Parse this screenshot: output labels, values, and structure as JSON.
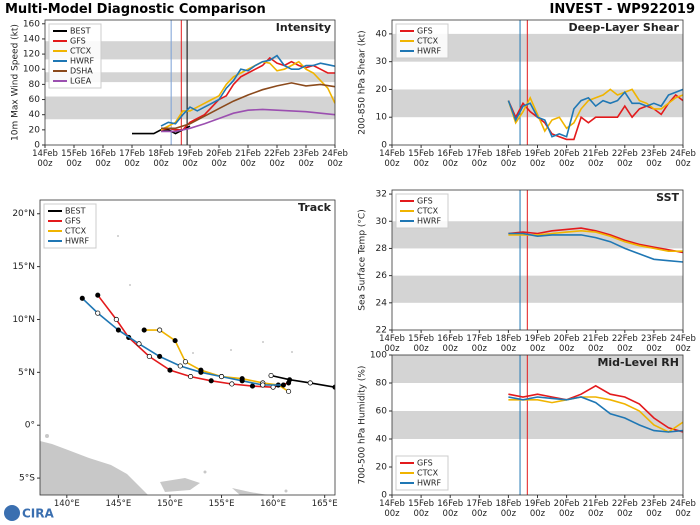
{
  "header": {
    "title": "Multi-Model Diagnostic Comparison",
    "subtitle": "INVEST - WP922019",
    "logo": "CIRA"
  },
  "chart_data": [
    {
      "type": "line",
      "title": "Intensity",
      "y_label": "10m Max Wind Speed (kt)",
      "legend": "upper left",
      "xlim": [
        0,
        10
      ],
      "ylim": [
        0,
        165
      ],
      "xticks": [
        {
          "value": 0,
          "label": "14Feb 00z"
        },
        {
          "value": 1,
          "label": "15Feb 00z"
        },
        {
          "value": 2,
          "label": "16Feb 00z"
        },
        {
          "value": 3,
          "label": "17Feb 00z"
        },
        {
          "value": 4,
          "label": "18Feb 00z"
        },
        {
          "value": 5,
          "label": "19Feb 00z"
        },
        {
          "value": 6,
          "label": "20Feb 00z"
        },
        {
          "value": 7,
          "label": "21Feb 00z"
        },
        {
          "value": 8,
          "label": "22Feb 00z"
        },
        {
          "value": 9,
          "label": "23Feb 00z"
        },
        {
          "value": 10,
          "label": "24Feb 00z"
        }
      ],
      "yticks": [
        0,
        20,
        40,
        60,
        80,
        100,
        120,
        140,
        160
      ],
      "bands": [
        [
          34,
          64
        ],
        [
          83,
          96
        ],
        [
          113,
          137
        ]
      ],
      "vlines": [
        {
          "x": 4.35,
          "color": "#7a9fd6"
        },
        {
          "x": 4.7,
          "color": "#e31a1c"
        },
        {
          "x": 4.9,
          "color": "#000000"
        }
      ],
      "series": [
        {
          "name": "BEST",
          "color": "#000000",
          "x": [
            3,
            3.25,
            3.5,
            3.75,
            4,
            4.25,
            4.5,
            4.75,
            5
          ],
          "values": [
            15,
            15,
            15,
            15,
            20,
            20,
            15,
            20,
            25
          ]
        },
        {
          "name": "GFS",
          "color": "#e31a1c",
          "x": [
            4,
            4.25,
            4.5,
            4.75,
            5,
            5.25,
            5.5,
            5.75,
            6,
            6.25,
            6.5,
            6.75,
            7,
            7.25,
            7.5,
            7.75,
            8,
            8.25,
            8.5,
            8.75,
            9,
            9.25,
            9.5,
            9.75,
            10
          ],
          "values": [
            20,
            22,
            20,
            20,
            30,
            35,
            40,
            50,
            60,
            65,
            80,
            90,
            95,
            100,
            105,
            115,
            108,
            105,
            110,
            105,
            102,
            105,
            100,
            95,
            95
          ]
        },
        {
          "name": "CTCX",
          "color": "#f0b400",
          "x": [
            4,
            4.25,
            4.5,
            4.75,
            5,
            5.25,
            5.5,
            5.75,
            6,
            6.25,
            6.5,
            6.75,
            7,
            7.25,
            7.5,
            7.75,
            8,
            8.25,
            8.5,
            8.75,
            9,
            9.25,
            9.5,
            9.75,
            10
          ],
          "values": [
            20,
            25,
            30,
            45,
            45,
            50,
            55,
            60,
            65,
            80,
            90,
            95,
            100,
            105,
            110,
            108,
            98,
            100,
            105,
            110,
            100,
            95,
            85,
            75,
            55
          ]
        },
        {
          "name": "HWRF",
          "color": "#1f77b4",
          "x": [
            4,
            4.25,
            4.5,
            4.75,
            5,
            5.25,
            5.5,
            5.75,
            6,
            6.25,
            6.5,
            6.75,
            7,
            7.25,
            7.5,
            7.75,
            8,
            8.25,
            8.5,
            8.75,
            9,
            9.25,
            9.5,
            9.75,
            10
          ],
          "values": [
            25,
            30,
            28,
            40,
            50,
            45,
            50,
            55,
            60,
            75,
            85,
            100,
            98,
            105,
            110,
            112,
            118,
            105,
            100,
            100,
            105,
            105,
            108,
            106,
            104
          ]
        },
        {
          "name": "DSHA",
          "color": "#8b4a1c",
          "x": [
            4,
            4.5,
            5,
            5.5,
            6,
            6.5,
            7,
            7.5,
            8,
            8.5,
            9,
            9.5,
            10
          ],
          "values": [
            22,
            22,
            28,
            38,
            48,
            58,
            66,
            73,
            78,
            82,
            78,
            80,
            77
          ]
        },
        {
          "name": "LGEA",
          "color": "#9b4fb0",
          "x": [
            4,
            4.5,
            5,
            5.5,
            6,
            6.5,
            7,
            7.5,
            8,
            8.5,
            9,
            9.5,
            10
          ],
          "values": [
            18,
            18,
            22,
            28,
            35,
            42,
            46,
            47,
            46,
            45,
            44,
            42,
            40
          ]
        }
      ]
    },
    {
      "type": "line",
      "title": "Deep-Layer Shear",
      "y_label": "200-850 hPa Shear (kt)",
      "legend": "upper left",
      "xlim": [
        0,
        10
      ],
      "ylim": [
        0,
        45
      ],
      "xticks": [
        {
          "value": 0,
          "label": "14Feb 00z"
        },
        {
          "value": 1,
          "label": "15Feb 00z"
        },
        {
          "value": 2,
          "label": "16Feb 00z"
        },
        {
          "value": 3,
          "label": "17Feb 00z"
        },
        {
          "value": 4,
          "label": "18Feb 00z"
        },
        {
          "value": 5,
          "label": "19Feb 00z"
        },
        {
          "value": 6,
          "label": "20Feb 00z"
        },
        {
          "value": 7,
          "label": "21Feb 00z"
        },
        {
          "value": 8,
          "label": "22Feb 00z"
        },
        {
          "value": 9,
          "label": "23Feb 00z"
        },
        {
          "value": 10,
          "label": "24Feb 00z"
        }
      ],
      "yticks": [
        0,
        10,
        20,
        30,
        40
      ],
      "bands": [
        [
          10,
          20
        ],
        [
          30,
          40
        ]
      ],
      "vlines": [
        {
          "x": 4.4,
          "color": "#1f77b4"
        },
        {
          "x": 4.65,
          "color": "#e31a1c"
        }
      ],
      "series": [
        {
          "name": "GFS",
          "color": "#e31a1c",
          "x": [
            4,
            4.25,
            4.5,
            4.75,
            5,
            5.25,
            5.5,
            5.75,
            6,
            6.25,
            6.5,
            6.75,
            7,
            7.25,
            7.5,
            7.75,
            8,
            8.25,
            8.5,
            8.75,
            9,
            9.25,
            9.5,
            9.75,
            10
          ],
          "values": [
            16,
            10,
            15,
            12,
            10,
            8,
            4,
            3,
            2,
            2,
            10,
            8,
            10,
            10,
            10,
            10,
            14,
            10,
            13,
            14,
            13,
            11,
            15,
            18,
            16
          ]
        },
        {
          "name": "CTCX",
          "color": "#f0b400",
          "x": [
            4,
            4.25,
            4.5,
            4.75,
            5,
            5.25,
            5.5,
            5.75,
            6,
            6.25,
            6.5,
            6.75,
            7,
            7.25,
            7.5,
            7.75,
            8,
            8.25,
            8.5,
            8.75,
            9,
            9.25,
            9.5,
            9.75,
            10
          ],
          "values": [
            16,
            8,
            12,
            17,
            11,
            5,
            9,
            10,
            6,
            8,
            13,
            16,
            17,
            18,
            20,
            18,
            19,
            20,
            16,
            15,
            13,
            13,
            15,
            17,
            18
          ]
        },
        {
          "name": "HWRF",
          "color": "#1f77b4",
          "x": [
            4,
            4.25,
            4.5,
            4.75,
            5,
            5.25,
            5.5,
            5.75,
            6,
            6.25,
            6.5,
            6.75,
            7,
            7.25,
            7.5,
            7.75,
            8,
            8.25,
            8.5,
            8.75,
            9,
            9.25,
            9.5,
            9.75,
            10
          ],
          "values": [
            16,
            9,
            14,
            15,
            10,
            9,
            3,
            4,
            3,
            13,
            16,
            17,
            14,
            16,
            15,
            16,
            19,
            15,
            15,
            14,
            15,
            14,
            18,
            19,
            20
          ]
        }
      ]
    },
    {
      "type": "line",
      "title": "Track",
      "legend": "upper left",
      "markers": true,
      "xlim": [
        137.4,
        166
      ],
      "ylim": [
        -6.6,
        21.3
      ],
      "xticks": [
        {
          "value": 140,
          "label": "140°E"
        },
        {
          "value": 145,
          "label": "145°E"
        },
        {
          "value": 150,
          "label": "150°E"
        },
        {
          "value": 155,
          "label": "155°E"
        },
        {
          "value": 160,
          "label": "160°E"
        },
        {
          "value": 165,
          "label": "165°E"
        }
      ],
      "yticks": [
        {
          "value": -5,
          "label": "5°S"
        },
        {
          "value": 0,
          "label": "0°"
        },
        {
          "value": 5,
          "label": "5°N"
        },
        {
          "value": 10,
          "label": "10°N"
        },
        {
          "value": 15,
          "label": "15°N"
        },
        {
          "value": 20,
          "label": "20°N"
        }
      ],
      "series": [
        {
          "name": "BEST",
          "color": "#000000",
          "x": [
            166,
            163.6,
            161.6,
            159.8
          ],
          "values": [
            3.6,
            4.0,
            4.3,
            4.7
          ]
        },
        {
          "name": "GFS",
          "color": "#e31a1c",
          "x": [
            143,
            144.8,
            146,
            148,
            150,
            152,
            154,
            156,
            158,
            160,
            161.5
          ],
          "values": [
            12.3,
            10,
            8.3,
            6.5,
            5.2,
            4.6,
            4.2,
            3.9,
            3.7,
            3.6,
            4.0
          ]
        },
        {
          "name": "CTCX",
          "color": "#f0b400",
          "x": [
            147.5,
            149,
            150.5,
            151.5,
            153,
            155,
            157,
            159,
            160.5,
            161.5
          ],
          "values": [
            9,
            9,
            8,
            6,
            5.2,
            4.6,
            4.4,
            4,
            3.8,
            3.2
          ]
        },
        {
          "name": "HWRF",
          "color": "#1f77b4",
          "x": [
            141.5,
            143,
            145,
            147,
            149,
            151,
            153,
            155,
            157,
            159,
            161
          ],
          "values": [
            12,
            10.6,
            9,
            7.7,
            6.5,
            5.6,
            5,
            4.6,
            4.2,
            3.8,
            3.8
          ]
        }
      ]
    },
    {
      "type": "line",
      "title": "SST",
      "y_label": "Sea Surface Temp (°C)",
      "legend": "upper left",
      "xlim": [
        0,
        10
      ],
      "ylim": [
        22,
        32.3
      ],
      "xticks": [
        {
          "value": 0,
          "label": "14Feb 00z"
        },
        {
          "value": 1,
          "label": "15Feb 00z"
        },
        {
          "value": 2,
          "label": "16Feb 00z"
        },
        {
          "value": 3,
          "label": "17Feb 00z"
        },
        {
          "value": 4,
          "label": "18Feb 00z"
        },
        {
          "value": 5,
          "label": "19Feb 00z"
        },
        {
          "value": 6,
          "label": "20Feb 00z"
        },
        {
          "value": 7,
          "label": "21Feb 00z"
        },
        {
          "value": 8,
          "label": "22Feb 00z"
        },
        {
          "value": 9,
          "label": "23Feb 00z"
        },
        {
          "value": 10,
          "label": "24Feb 00z"
        }
      ],
      "yticks": [
        22,
        24,
        26,
        28,
        30,
        32
      ],
      "bands": [
        [
          24,
          26
        ],
        [
          28,
          30
        ]
      ],
      "vlines": [
        {
          "x": 4.4,
          "color": "#1f77b4"
        },
        {
          "x": 4.65,
          "color": "#e31a1c"
        }
      ],
      "series": [
        {
          "name": "GFS",
          "color": "#e31a1c",
          "x": [
            4,
            4.5,
            5,
            5.5,
            6,
            6.5,
            7,
            7.5,
            8,
            8.5,
            9,
            9.5,
            10
          ],
          "values": [
            29.1,
            29.2,
            29.1,
            29.3,
            29.4,
            29.5,
            29.3,
            29.0,
            28.6,
            28.3,
            28.1,
            27.9,
            27.7
          ]
        },
        {
          "name": "CTCX",
          "color": "#f0b400",
          "x": [
            4,
            4.5,
            5,
            5.5,
            6,
            6.5,
            7,
            7.5,
            8,
            8.5,
            9,
            9.5,
            10
          ],
          "values": [
            29.0,
            29.0,
            29.0,
            29.1,
            29.2,
            29.3,
            29.2,
            28.9,
            28.5,
            28.2,
            28.0,
            27.8,
            27.8
          ]
        },
        {
          "name": "HWRF",
          "color": "#1f77b4",
          "x": [
            4,
            4.5,
            5,
            5.5,
            6,
            6.5,
            7,
            7.5,
            8,
            8.5,
            9,
            9.5,
            10
          ],
          "values": [
            29.1,
            29.1,
            28.9,
            29.0,
            29.0,
            29.0,
            28.8,
            28.5,
            28.0,
            27.6,
            27.2,
            27.1,
            27.0
          ]
        }
      ]
    },
    {
      "type": "line",
      "title": "Mid-Level RH",
      "y_label": "700-500 hPa Humidity (%)",
      "legend": "lower left",
      "xlim": [
        0,
        10
      ],
      "ylim": [
        0,
        100
      ],
      "xticks": [
        {
          "value": 0,
          "label": "14Feb 00z"
        },
        {
          "value": 1,
          "label": "15Feb 00z"
        },
        {
          "value": 2,
          "label": "16Feb 00z"
        },
        {
          "value": 3,
          "label": "17Feb 00z"
        },
        {
          "value": 4,
          "label": "18Feb 00z"
        },
        {
          "value": 5,
          "label": "19Feb 00z"
        },
        {
          "value": 6,
          "label": "20Feb 00z"
        },
        {
          "value": 7,
          "label": "21Feb 00z"
        },
        {
          "value": 8,
          "label": "22Feb 00z"
        },
        {
          "value": 9,
          "label": "23Feb 00z"
        },
        {
          "value": 10,
          "label": "24Feb 00z"
        }
      ],
      "yticks": [
        0,
        20,
        40,
        60,
        80,
        100
      ],
      "bands": [
        [
          40,
          60
        ],
        [
          80,
          100
        ]
      ],
      "vlines": [
        {
          "x": 4.4,
          "color": "#1f77b4"
        },
        {
          "x": 4.65,
          "color": "#e31a1c"
        }
      ],
      "series": [
        {
          "name": "GFS",
          "color": "#e31a1c",
          "x": [
            4,
            4.5,
            5,
            5.5,
            6,
            6.5,
            7,
            7.5,
            8,
            8.5,
            9,
            9.5,
            10
          ],
          "values": [
            72,
            70,
            72,
            70,
            68,
            72,
            78,
            72,
            70,
            65,
            55,
            48,
            45
          ]
        },
        {
          "name": "CTCX",
          "color": "#f0b400",
          "x": [
            4,
            4.5,
            5,
            5.5,
            6,
            6.5,
            7,
            7.5,
            8,
            8.5,
            9,
            9.5,
            10
          ],
          "values": [
            68,
            68,
            68,
            66,
            68,
            70,
            70,
            68,
            65,
            60,
            50,
            45,
            52
          ]
        },
        {
          "name": "HWRF",
          "color": "#1f77b4",
          "x": [
            4,
            4.5,
            5,
            5.5,
            6,
            6.5,
            7,
            7.5,
            8,
            8.5,
            9,
            9.5,
            10
          ],
          "values": [
            70,
            68,
            70,
            69,
            68,
            70,
            66,
            58,
            55,
            50,
            46,
            45,
            46
          ]
        }
      ]
    }
  ]
}
